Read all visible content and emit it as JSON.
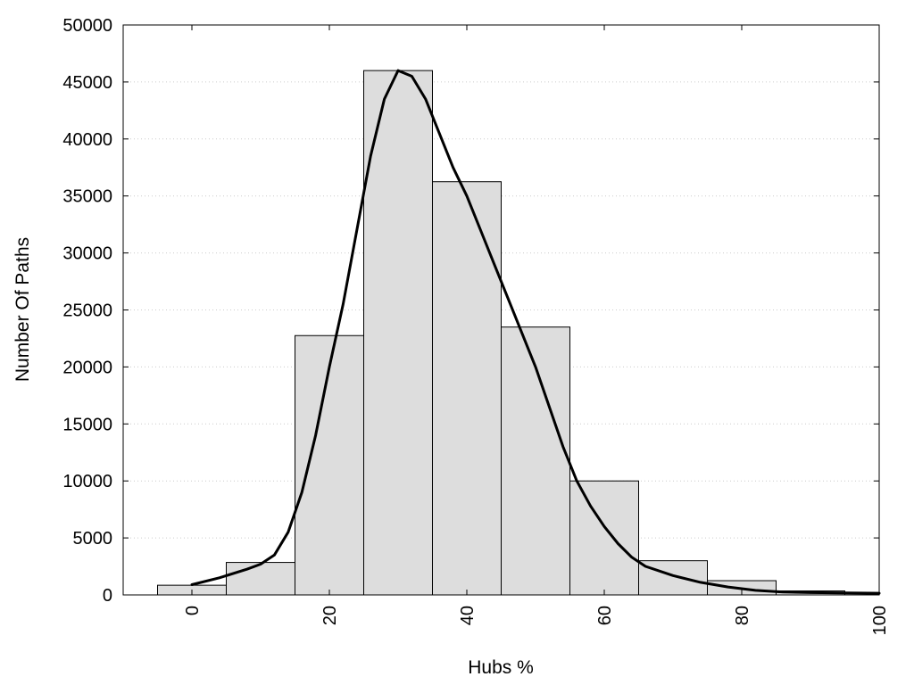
{
  "chart_data": {
    "type": "bar",
    "subtype": "histogram_with_density_curve",
    "title": "",
    "xlabel": "Hubs %",
    "ylabel": "Number Of Paths",
    "xlim": [
      -10,
      100
    ],
    "ylim": [
      0,
      50000
    ],
    "grid": "horizontal-dotted",
    "bin_width": 10,
    "x_ticks": [
      0,
      20,
      40,
      60,
      80,
      100
    ],
    "x_tick_labels": [
      "0",
      "20",
      "40",
      "60",
      "80",
      "100"
    ],
    "y_ticks": [
      0,
      5000,
      10000,
      15000,
      20000,
      25000,
      30000,
      35000,
      40000,
      45000,
      50000
    ],
    "y_tick_labels": [
      "0",
      "5000",
      "10000",
      "15000",
      "20000",
      "25000",
      "30000",
      "35000",
      "40000",
      "45000",
      "50000"
    ],
    "bins": [
      {
        "center": 0,
        "value": 850
      },
      {
        "center": 10,
        "value": 2850
      },
      {
        "center": 20,
        "value": 22750
      },
      {
        "center": 30,
        "value": 46000
      },
      {
        "center": 40,
        "value": 36250
      },
      {
        "center": 50,
        "value": 23500
      },
      {
        "center": 60,
        "value": 10000
      },
      {
        "center": 70,
        "value": 3000
      },
      {
        "center": 80,
        "value": 1250
      },
      {
        "center": 90,
        "value": 350
      },
      {
        "center": 100,
        "value": 150
      }
    ],
    "curve": [
      [
        0,
        900
      ],
      [
        4,
        1500
      ],
      [
        8,
        2250
      ],
      [
        10,
        2700
      ],
      [
        12,
        3500
      ],
      [
        14,
        5500
      ],
      [
        16,
        9000
      ],
      [
        18,
        14000
      ],
      [
        20,
        20000
      ],
      [
        22,
        25500
      ],
      [
        24,
        32000
      ],
      [
        26,
        38500
      ],
      [
        28,
        43500
      ],
      [
        30,
        46000
      ],
      [
        32,
        45500
      ],
      [
        34,
        43500
      ],
      [
        36,
        40500
      ],
      [
        38,
        37500
      ],
      [
        40,
        35000
      ],
      [
        42,
        32000
      ],
      [
        44,
        29000
      ],
      [
        46,
        26000
      ],
      [
        48,
        23000
      ],
      [
        50,
        20000
      ],
      [
        52,
        16500
      ],
      [
        54,
        13000
      ],
      [
        56,
        10000
      ],
      [
        58,
        7800
      ],
      [
        60,
        6000
      ],
      [
        62,
        4500
      ],
      [
        64,
        3300
      ],
      [
        66,
        2500
      ],
      [
        70,
        1700
      ],
      [
        74,
        1100
      ],
      [
        78,
        700
      ],
      [
        82,
        400
      ],
      [
        86,
        250
      ],
      [
        90,
        200
      ],
      [
        95,
        170
      ],
      [
        100,
        150
      ]
    ],
    "colors": {
      "bar_fill": "#dddddd",
      "bar_stroke": "#000000",
      "curve": "#000000",
      "grid": "#cccccc"
    }
  }
}
